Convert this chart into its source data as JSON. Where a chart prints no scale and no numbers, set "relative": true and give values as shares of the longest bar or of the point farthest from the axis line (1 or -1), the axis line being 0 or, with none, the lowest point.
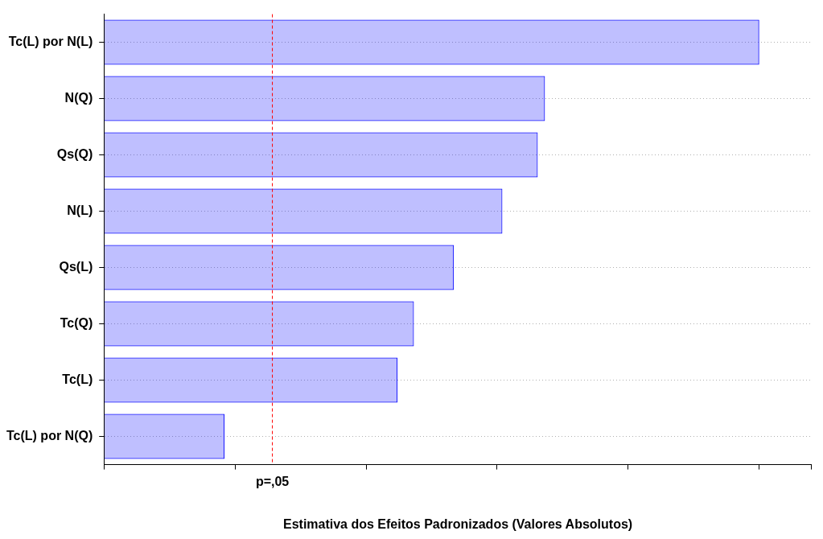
{
  "chart_data": {
    "type": "bar",
    "orientation": "horizontal",
    "relative": true,
    "categories": [
      "Tc(L) por N(L)",
      "N(Q)",
      "Qs(Q)",
      "N(L)",
      "Qs(L)",
      "Tc(Q)",
      "Tc(L)",
      "Tc(L) por N(Q)"
    ],
    "values": [
      1,
      0.673,
      0.662,
      0.608,
      0.534,
      0.473,
      0.448,
      0.184
    ],
    "color": "#0000ff",
    "xlabel": "Estimativa dos Efeitos Padronizados (Valores Absolutos)",
    "ref_lines": [
      {
        "axis": "x",
        "value": 0.257,
        "label": "p=,05",
        "color": "#ff0000",
        "line_style": "dashed"
      }
    ],
    "grid": "y",
    "tick_labels": "y",
    "legend": false
  }
}
